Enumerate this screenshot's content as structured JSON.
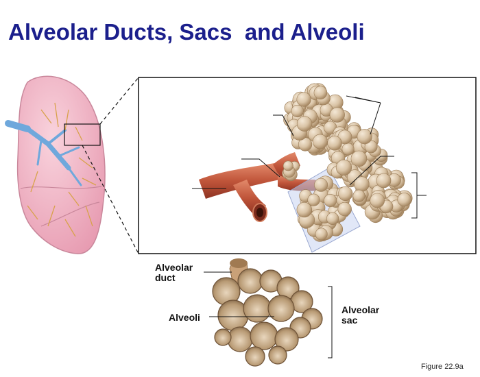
{
  "title": "Alveolar Ducts, Sacs  and Alveoli",
  "labels": {
    "alveolar_duct_line1": "Alveolar",
    "alveolar_duct_line2": "duct",
    "alveoli": "Alveoli",
    "alveolar_sac_line1": "Alveolar",
    "alveolar_sac_line2": "sac"
  },
  "figure_ref": "Figure 22.9a",
  "colors": {
    "title": "#1b1f8c",
    "lung_fill": "#f2b6c6",
    "bronchial_tree": "#6fa8dc",
    "alveoli_fill": "#d9c3a5",
    "bronchiole": "#c0553a"
  }
}
